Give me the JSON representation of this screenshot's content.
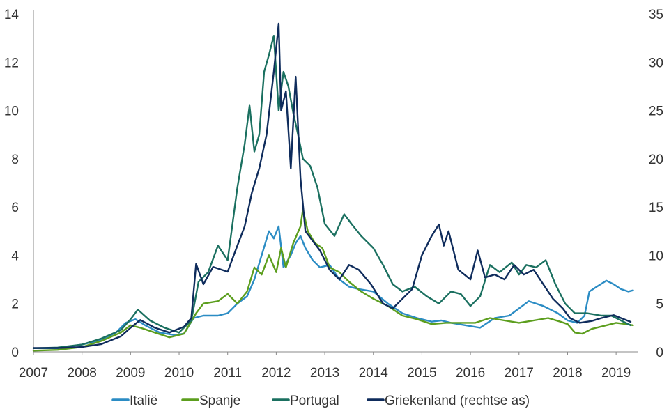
{
  "chart_data": {
    "type": "line",
    "title": "",
    "xlabel": "",
    "ylabel_left": "",
    "ylabel_right": "",
    "xlim": [
      2007,
      2019.4
    ],
    "ylim_left": [
      0,
      14
    ],
    "ylim_right": [
      0,
      35
    ],
    "x_ticks": [
      2007,
      2008,
      2009,
      2010,
      2011,
      2012,
      2013,
      2014,
      2015,
      2016,
      2017,
      2018,
      2019
    ],
    "y_ticks_left": [
      0,
      2,
      4,
      6,
      8,
      10,
      12,
      14
    ],
    "y_ticks_right": [
      0,
      5,
      10,
      15,
      20,
      25,
      30,
      35
    ],
    "grid": false,
    "legend_position": "bottom",
    "series": [
      {
        "name": "Italië",
        "axis": "left",
        "color": "#2b8cc4",
        "x": [
          2007,
          2007.5,
          2008,
          2008.4,
          2008.7,
          2008.9,
          2009.1,
          2009.3,
          2009.6,
          2009.9,
          2010.1,
          2010.3,
          2010.5,
          2010.8,
          2011.0,
          2011.2,
          2011.4,
          2011.55,
          2011.7,
          2011.85,
          2011.95,
          2012.05,
          2012.15,
          2012.3,
          2012.4,
          2012.5,
          2012.6,
          2012.75,
          2012.9,
          2013.1,
          2013.3,
          2013.5,
          2013.7,
          2014.0,
          2014.3,
          2014.6,
          2014.9,
          2015.2,
          2015.4,
          2015.6,
          2015.9,
          2016.2,
          2016.5,
          2016.8,
          2017.0,
          2017.2,
          2017.5,
          2017.8,
          2018.0,
          2018.2,
          2018.35,
          2018.45,
          2018.6,
          2018.8,
          2018.95,
          2019.1,
          2019.25,
          2019.35
        ],
        "values": [
          0.15,
          0.15,
          0.3,
          0.5,
          0.8,
          1.2,
          1.35,
          1.1,
          0.8,
          0.7,
          0.75,
          1.4,
          1.5,
          1.5,
          1.6,
          2.0,
          2.3,
          3.0,
          4.0,
          5.0,
          4.7,
          5.2,
          3.5,
          4.0,
          4.5,
          4.8,
          4.3,
          3.8,
          3.5,
          3.6,
          3.0,
          2.7,
          2.6,
          2.5,
          2.0,
          1.6,
          1.4,
          1.25,
          1.3,
          1.2,
          1.1,
          1.0,
          1.4,
          1.5,
          1.8,
          2.1,
          1.9,
          1.6,
          1.3,
          1.2,
          1.5,
          2.5,
          2.7,
          2.95,
          2.8,
          2.6,
          2.5,
          2.55
        ]
      },
      {
        "name": "Spanje",
        "axis": "left",
        "color": "#5c9e1e",
        "x": [
          2007,
          2007.5,
          2008,
          2008.4,
          2008.8,
          2009.0,
          2009.2,
          2009.5,
          2009.8,
          2010.1,
          2010.35,
          2010.5,
          2010.8,
          2011.0,
          2011.2,
          2011.4,
          2011.55,
          2011.7,
          2011.85,
          2012.0,
          2012.1,
          2012.2,
          2012.35,
          2012.5,
          2012.55,
          2012.65,
          2012.8,
          2012.95,
          2013.1,
          2013.3,
          2013.5,
          2013.75,
          2014.0,
          2014.3,
          2014.6,
          2014.9,
          2015.2,
          2015.5,
          2015.8,
          2016.1,
          2016.4,
          2016.7,
          2017.0,
          2017.3,
          2017.6,
          2017.85,
          2018.0,
          2018.15,
          2018.3,
          2018.5,
          2018.8,
          2019.0,
          2019.2,
          2019.35
        ],
        "values": [
          0.05,
          0.08,
          0.2,
          0.45,
          0.8,
          1.1,
          1.0,
          0.8,
          0.6,
          0.75,
          1.6,
          2.0,
          2.1,
          2.4,
          2.0,
          2.5,
          3.5,
          3.2,
          4.0,
          3.3,
          4.3,
          3.5,
          4.5,
          5.2,
          5.9,
          5.0,
          4.5,
          4.3,
          3.5,
          3.3,
          2.9,
          2.5,
          2.2,
          1.9,
          1.5,
          1.35,
          1.15,
          1.2,
          1.2,
          1.2,
          1.4,
          1.3,
          1.2,
          1.3,
          1.4,
          1.25,
          1.15,
          0.8,
          0.75,
          0.95,
          1.1,
          1.2,
          1.15,
          1.1
        ]
      },
      {
        "name": "Portugal",
        "axis": "left",
        "color": "#1b7060",
        "x": [
          2007,
          2007.5,
          2008,
          2008.4,
          2008.8,
          2009.0,
          2009.15,
          2009.4,
          2009.7,
          2010.0,
          2010.25,
          2010.4,
          2010.6,
          2010.8,
          2011.0,
          2011.2,
          2011.35,
          2011.45,
          2011.55,
          2011.65,
          2011.75,
          2011.85,
          2011.95,
          2012.05,
          2012.15,
          2012.25,
          2012.35,
          2012.45,
          2012.55,
          2012.7,
          2012.85,
          2013.0,
          2013.2,
          2013.4,
          2013.55,
          2013.75,
          2014.0,
          2014.2,
          2014.4,
          2014.6,
          2014.85,
          2015.1,
          2015.35,
          2015.6,
          2015.8,
          2016.0,
          2016.2,
          2016.4,
          2016.6,
          2016.85,
          2017.0,
          2017.15,
          2017.35,
          2017.55,
          2017.75,
          2017.95,
          2018.15,
          2018.4,
          2018.7,
          2018.9,
          2019.1,
          2019.3
        ],
        "values": [
          0.15,
          0.18,
          0.3,
          0.55,
          0.9,
          1.35,
          1.75,
          1.3,
          1.0,
          0.8,
          1.3,
          2.9,
          3.3,
          4.4,
          3.8,
          6.8,
          8.6,
          10.2,
          8.3,
          9.0,
          11.6,
          12.3,
          13.1,
          10.0,
          11.6,
          11.0,
          9.9,
          9.0,
          8.0,
          7.7,
          6.8,
          5.3,
          4.8,
          5.7,
          5.3,
          4.8,
          4.3,
          3.6,
          2.8,
          2.5,
          2.7,
          2.3,
          2.0,
          2.5,
          2.4,
          1.9,
          2.3,
          3.6,
          3.3,
          3.7,
          3.2,
          3.6,
          3.5,
          3.8,
          2.8,
          2.0,
          1.6,
          1.6,
          1.5,
          1.5,
          1.3,
          1.1
        ]
      },
      {
        "name": "Griekenland (rechtse as)",
        "axis": "right",
        "color": "#0f2c5c",
        "x": [
          2007,
          2007.5,
          2008,
          2008.4,
          2008.8,
          2009.0,
          2009.2,
          2009.5,
          2009.8,
          2010.1,
          2010.25,
          2010.35,
          2010.5,
          2010.7,
          2011.0,
          2011.2,
          2011.35,
          2011.5,
          2011.65,
          2011.8,
          2011.95,
          2012.05,
          2012.1,
          2012.2,
          2012.3,
          2012.4,
          2012.5,
          2012.6,
          2012.75,
          2012.9,
          2013.1,
          2013.3,
          2013.5,
          2013.7,
          2013.95,
          2014.2,
          2014.4,
          2014.6,
          2014.8,
          2015.0,
          2015.2,
          2015.35,
          2015.45,
          2015.55,
          2015.75,
          2016.0,
          2016.15,
          2016.3,
          2016.5,
          2016.7,
          2016.9,
          2017.1,
          2017.3,
          2017.5,
          2017.7,
          2017.9,
          2018.05,
          2018.25,
          2018.5,
          2018.7,
          2018.95,
          2019.15,
          2019.3
        ],
        "values": [
          0.4,
          0.4,
          0.5,
          0.8,
          1.6,
          2.5,
          3.3,
          2.5,
          2.0,
          2.6,
          3.5,
          9.1,
          7.0,
          8.8,
          8.3,
          11.0,
          13.0,
          16.5,
          19.0,
          22.5,
          29.0,
          34.0,
          25.0,
          27.0,
          19.0,
          28.5,
          18.0,
          12.5,
          11.5,
          10.5,
          8.5,
          7.5,
          9.0,
          8.5,
          7.0,
          5.0,
          4.5,
          5.5,
          6.5,
          10.0,
          12.0,
          13.2,
          11.0,
          12.5,
          8.5,
          7.5,
          10.5,
          7.7,
          8.0,
          7.5,
          9.0,
          8.0,
          8.5,
          7.0,
          5.5,
          4.5,
          3.5,
          3.0,
          3.2,
          3.5,
          3.8,
          3.4,
          3.1
        ]
      }
    ]
  }
}
